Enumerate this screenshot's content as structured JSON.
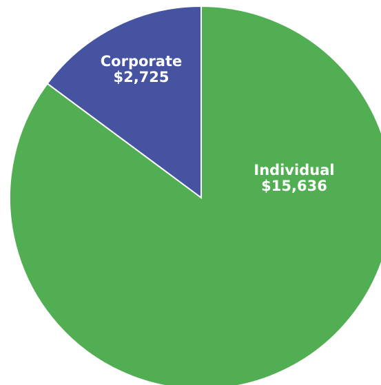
{
  "chart_data": {
    "type": "pie",
    "categories": [
      "Individual",
      "Corporate"
    ],
    "values": [
      15636,
      2725
    ],
    "value_labels": [
      "$15,636",
      "$2,725"
    ],
    "colors": [
      "#52ae52",
      "#4553a0"
    ]
  }
}
